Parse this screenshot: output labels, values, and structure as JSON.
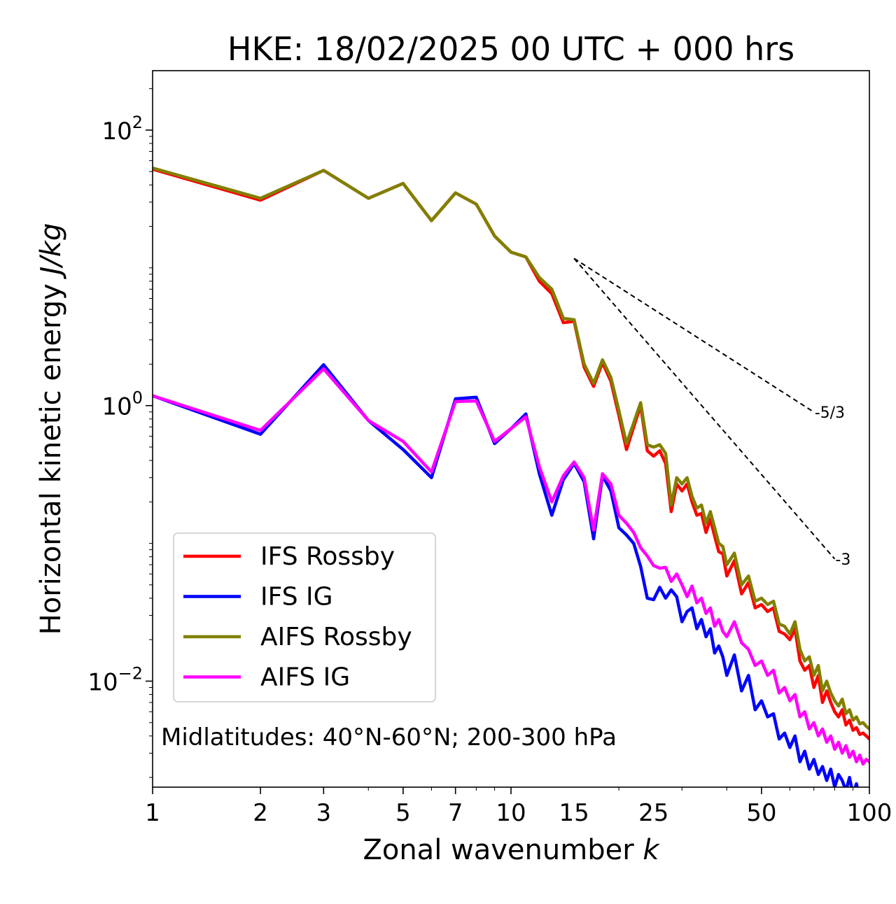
{
  "chart_data": {
    "type": "line",
    "title": "HKE: 18/02/2025 00 UTC + 000 hrs",
    "xlabel": "Zonal wavenumber",
    "xlabel_italic": "k",
    "ylabel": "Horizontal kinetic energy",
    "ylabel_italic": "J/kg",
    "xscale": "log",
    "yscale": "log",
    "xlim": [
      1,
      100
    ],
    "ylim": [
      0.0017,
      270
    ],
    "xticks": [
      1,
      2,
      3,
      5,
      7,
      10,
      15,
      25,
      50,
      100
    ],
    "xtick_labels": [
      "1",
      "2",
      "3",
      "5",
      "7",
      "10",
      "15",
      "25",
      "50",
      "100"
    ],
    "yticks": [
      {
        "base": "10",
        "exp": "2",
        "value": 100
      },
      {
        "base": "10",
        "exp": "0",
        "value": 1
      },
      {
        "base": "10",
        "exp": "−2",
        "value": 0.01
      }
    ],
    "annotation": "Midlatitudes: 40°N-60°N; 200-300 hPa",
    "legend_placement": "lower-left",
    "reference_lines": [
      {
        "label": "-5/3",
        "slope": -1.6667,
        "x": [
          15,
          70
        ],
        "y0": 11.7
      },
      {
        "label": "-3",
        "slope": -3,
        "x": [
          15,
          80
        ],
        "y0": 11.7
      }
    ],
    "series": [
      {
        "name": "IFS Rossby",
        "color": "#ff0000",
        "points": [
          [
            1,
            52
          ],
          [
            2,
            31
          ],
          [
            3,
            51
          ],
          [
            4,
            32
          ],
          [
            5,
            41
          ],
          [
            6,
            22
          ],
          [
            7,
            35
          ],
          [
            8,
            29
          ],
          [
            9,
            17
          ],
          [
            10,
            13
          ],
          [
            11,
            12
          ],
          [
            12,
            8.0
          ],
          [
            13,
            6.5
          ],
          [
            14,
            4.0
          ],
          [
            15,
            4.1
          ],
          [
            16,
            1.9
          ],
          [
            17,
            1.38
          ],
          [
            18,
            2.05
          ],
          [
            19,
            1.5
          ],
          [
            20,
            0.85
          ],
          [
            21,
            0.48
          ],
          [
            22,
            0.7
          ],
          [
            23,
            1.0
          ],
          [
            24,
            0.47
          ],
          [
            25,
            0.43
          ],
          [
            26,
            0.47
          ],
          [
            27,
            0.38
          ],
          [
            28,
            0.17
          ],
          [
            29,
            0.27
          ],
          [
            30,
            0.24
          ],
          [
            31,
            0.27
          ],
          [
            32,
            0.2
          ],
          [
            33,
            0.16
          ],
          [
            34,
            0.165
          ],
          [
            35,
            0.12
          ],
          [
            36,
            0.15
          ],
          [
            37,
            0.113
          ],
          [
            38,
            0.087
          ],
          [
            39,
            0.084
          ],
          [
            40,
            0.058
          ],
          [
            42,
            0.075
          ],
          [
            44,
            0.043
          ],
          [
            46,
            0.052
          ],
          [
            48,
            0.034
          ],
          [
            50,
            0.036
          ],
          [
            52,
            0.032
          ],
          [
            54,
            0.034
          ],
          [
            56,
            0.023
          ],
          [
            58,
            0.022
          ],
          [
            60,
            0.02
          ],
          [
            62,
            0.024
          ],
          [
            64,
            0.014
          ],
          [
            66,
            0.012
          ],
          [
            68,
            0.013
          ],
          [
            70,
            0.009
          ],
          [
            72,
            0.011
          ],
          [
            74,
            0.007
          ],
          [
            76,
            0.0085
          ],
          [
            78,
            0.007
          ],
          [
            80,
            0.006
          ],
          [
            82,
            0.0055
          ],
          [
            84,
            0.0062
          ],
          [
            86,
            0.0048
          ],
          [
            88,
            0.0052
          ],
          [
            90,
            0.0044
          ],
          [
            92,
            0.0046
          ],
          [
            94,
            0.0041
          ],
          [
            96,
            0.0042
          ],
          [
            98,
            0.004
          ],
          [
            100,
            0.0038
          ]
        ]
      },
      {
        "name": "IFS IG",
        "color": "#0000ff",
        "points": [
          [
            1,
            1.18
          ],
          [
            2,
            0.62
          ],
          [
            3,
            1.98
          ],
          [
            4,
            0.78
          ],
          [
            5,
            0.48
          ],
          [
            6,
            0.3
          ],
          [
            7,
            1.12
          ],
          [
            8,
            1.15
          ],
          [
            9,
            0.53
          ],
          [
            10,
            0.68
          ],
          [
            11,
            0.87
          ],
          [
            12,
            0.32
          ],
          [
            13,
            0.16
          ],
          [
            14,
            0.29
          ],
          [
            15,
            0.38
          ],
          [
            16,
            0.28
          ],
          [
            17,
            0.108
          ],
          [
            18,
            0.31
          ],
          [
            19,
            0.24
          ],
          [
            20,
            0.13
          ],
          [
            21,
            0.115
          ],
          [
            22,
            0.1
          ],
          [
            23,
            0.068
          ],
          [
            24,
            0.04
          ],
          [
            25,
            0.039
          ],
          [
            26,
            0.048
          ],
          [
            27,
            0.04
          ],
          [
            28,
            0.046
          ],
          [
            29,
            0.041
          ],
          [
            30,
            0.027
          ],
          [
            31,
            0.032
          ],
          [
            32,
            0.034
          ],
          [
            33,
            0.024
          ],
          [
            34,
            0.028
          ],
          [
            35,
            0.021
          ],
          [
            36,
            0.024
          ],
          [
            37,
            0.016
          ],
          [
            38,
            0.018
          ],
          [
            39,
            0.015
          ],
          [
            40,
            0.011
          ],
          [
            42,
            0.0155
          ],
          [
            44,
            0.0085
          ],
          [
            46,
            0.011
          ],
          [
            48,
            0.0062
          ],
          [
            50,
            0.0072
          ],
          [
            52,
            0.0055
          ],
          [
            54,
            0.0058
          ],
          [
            56,
            0.0038
          ],
          [
            58,
            0.0042
          ],
          [
            60,
            0.0033
          ],
          [
            62,
            0.004
          ],
          [
            64,
            0.0026
          ],
          [
            66,
            0.0031
          ],
          [
            68,
            0.0023
          ],
          [
            70,
            0.0027
          ],
          [
            72,
            0.0021
          ],
          [
            74,
            0.0024
          ],
          [
            76,
            0.0019
          ],
          [
            78,
            0.0023
          ],
          [
            80,
            0.0017
          ],
          [
            82,
            0.0021
          ],
          [
            84,
            0.0019
          ],
          [
            86,
            0.0016
          ],
          [
            88,
            0.002
          ],
          [
            90,
            0.0015
          ],
          [
            92,
            0.0018
          ],
          [
            94,
            0.00135
          ],
          [
            96,
            0.0013
          ],
          [
            98,
            0.0016
          ],
          [
            100,
            0.0015
          ]
        ]
      },
      {
        "name": "AIFS Rossby",
        "color": "#808000",
        "points": [
          [
            1,
            53
          ],
          [
            2,
            32
          ],
          [
            3,
            51
          ],
          [
            4,
            32
          ],
          [
            5,
            41
          ],
          [
            6,
            22
          ],
          [
            7,
            35
          ],
          [
            8,
            29
          ],
          [
            9,
            17
          ],
          [
            10,
            13
          ],
          [
            11,
            12
          ],
          [
            12,
            8.5
          ],
          [
            13,
            7.0
          ],
          [
            14,
            4.3
          ],
          [
            15,
            4.2
          ],
          [
            16,
            2.0
          ],
          [
            17,
            1.45
          ],
          [
            18,
            2.15
          ],
          [
            19,
            1.6
          ],
          [
            20,
            0.92
          ],
          [
            21,
            0.53
          ],
          [
            22,
            0.75
          ],
          [
            23,
            1.05
          ],
          [
            24,
            0.52
          ],
          [
            25,
            0.5
          ],
          [
            26,
            0.52
          ],
          [
            27,
            0.45
          ],
          [
            28,
            0.19
          ],
          [
            29,
            0.3
          ],
          [
            30,
            0.27
          ],
          [
            31,
            0.3
          ],
          [
            32,
            0.22
          ],
          [
            33,
            0.18
          ],
          [
            34,
            0.19
          ],
          [
            35,
            0.14
          ],
          [
            36,
            0.17
          ],
          [
            37,
            0.13
          ],
          [
            38,
            0.1
          ],
          [
            39,
            0.095
          ],
          [
            40,
            0.07
          ],
          [
            42,
            0.085
          ],
          [
            44,
            0.05
          ],
          [
            46,
            0.058
          ],
          [
            48,
            0.038
          ],
          [
            50,
            0.04
          ],
          [
            52,
            0.036
          ],
          [
            54,
            0.038
          ],
          [
            56,
            0.026
          ],
          [
            58,
            0.025
          ],
          [
            60,
            0.022
          ],
          [
            62,
            0.027
          ],
          [
            64,
            0.017
          ],
          [
            66,
            0.014
          ],
          [
            68,
            0.015
          ],
          [
            70,
            0.011
          ],
          [
            72,
            0.013
          ],
          [
            74,
            0.0085
          ],
          [
            76,
            0.01
          ],
          [
            78,
            0.0082
          ],
          [
            80,
            0.0072
          ],
          [
            82,
            0.0066
          ],
          [
            84,
            0.0074
          ],
          [
            86,
            0.0058
          ],
          [
            88,
            0.0062
          ],
          [
            90,
            0.0052
          ],
          [
            92,
            0.0055
          ],
          [
            94,
            0.0049
          ],
          [
            96,
            0.005
          ],
          [
            98,
            0.0047
          ],
          [
            100,
            0.0045
          ]
        ]
      },
      {
        "name": "AIFS IG",
        "color": "#ff00ff",
        "points": [
          [
            1,
            1.18
          ],
          [
            2,
            0.66
          ],
          [
            3,
            1.85
          ],
          [
            4,
            0.78
          ],
          [
            5,
            0.55
          ],
          [
            6,
            0.33
          ],
          [
            7,
            1.07
          ],
          [
            8,
            1.08
          ],
          [
            9,
            0.55
          ],
          [
            10,
            0.68
          ],
          [
            11,
            0.83
          ],
          [
            12,
            0.36
          ],
          [
            13,
            0.2
          ],
          [
            14,
            0.31
          ],
          [
            15,
            0.39
          ],
          [
            16,
            0.3
          ],
          [
            17,
            0.125
          ],
          [
            18,
            0.32
          ],
          [
            19,
            0.27
          ],
          [
            20,
            0.16
          ],
          [
            21,
            0.14
          ],
          [
            22,
            0.12
          ],
          [
            23,
            0.093
          ],
          [
            24,
            0.081
          ],
          [
            25,
            0.069
          ],
          [
            26,
            0.066
          ],
          [
            27,
            0.067
          ],
          [
            28,
            0.053
          ],
          [
            29,
            0.06
          ],
          [
            30,
            0.05
          ],
          [
            31,
            0.041
          ],
          [
            32,
            0.049
          ],
          [
            33,
            0.037
          ],
          [
            34,
            0.04
          ],
          [
            35,
            0.031
          ],
          [
            36,
            0.034
          ],
          [
            37,
            0.025
          ],
          [
            38,
            0.028
          ],
          [
            39,
            0.023
          ],
          [
            40,
            0.021
          ],
          [
            42,
            0.027
          ],
          [
            44,
            0.019
          ],
          [
            46,
            0.017
          ],
          [
            48,
            0.013
          ],
          [
            50,
            0.014
          ],
          [
            52,
            0.011
          ],
          [
            54,
            0.012
          ],
          [
            56,
            0.0082
          ],
          [
            58,
            0.009
          ],
          [
            60,
            0.0072
          ],
          [
            62,
            0.008
          ],
          [
            64,
            0.0055
          ],
          [
            66,
            0.006
          ],
          [
            68,
            0.0045
          ],
          [
            70,
            0.005
          ],
          [
            72,
            0.004
          ],
          [
            74,
            0.0045
          ],
          [
            76,
            0.0036
          ],
          [
            78,
            0.004
          ],
          [
            80,
            0.0032
          ],
          [
            82,
            0.0036
          ],
          [
            84,
            0.003
          ],
          [
            86,
            0.0034
          ],
          [
            88,
            0.0028
          ],
          [
            90,
            0.0031
          ],
          [
            92,
            0.0026
          ],
          [
            94,
            0.0029
          ],
          [
            96,
            0.0025
          ],
          [
            98,
            0.0027
          ],
          [
            100,
            0.0026
          ]
        ]
      }
    ]
  }
}
